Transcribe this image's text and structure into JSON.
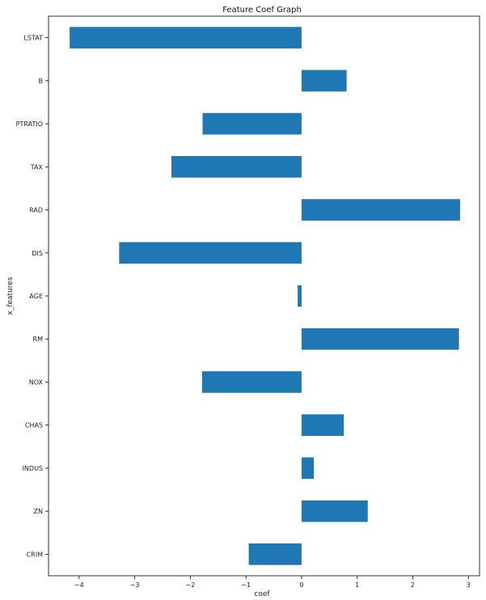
{
  "chart_data": {
    "type": "bar",
    "orientation": "horizontal",
    "title": "Feature Coef Graph",
    "xlabel": "coef",
    "ylabel": "x_features",
    "categories": [
      "CRIM",
      "ZN",
      "INDUS",
      "CHAS",
      "NOX",
      "RM",
      "AGE",
      "DIS",
      "RAD",
      "TAX",
      "PTRATIO",
      "B",
      "LSTAT"
    ],
    "values": [
      -0.95,
      1.19,
      0.22,
      0.76,
      -1.79,
      2.83,
      -0.07,
      -3.28,
      2.85,
      -2.34,
      -1.78,
      0.81,
      -4.17
    ],
    "xlim": [
      -4.55,
      3.2
    ],
    "xticks": [
      -4,
      -3,
      -2,
      -1,
      0,
      1,
      2,
      3
    ],
    "xtick_labels": [
      "−4",
      "−3",
      "−2",
      "−1",
      "0",
      "1",
      "2",
      "3"
    ],
    "grid": false,
    "legend": "none",
    "colors": {
      "bar": "#1f77b4",
      "frame": "#000000",
      "background": "#ffffff"
    }
  }
}
